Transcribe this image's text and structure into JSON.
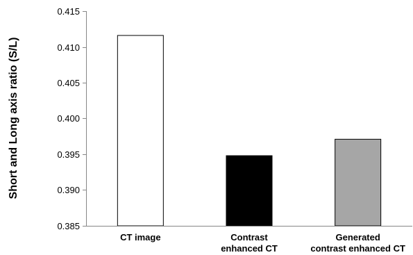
{
  "chart_data": {
    "type": "bar",
    "title": "",
    "xlabel": "",
    "ylabel": "Short and Long axis ratio (S/L)",
    "ylim": [
      0.385,
      0.415
    ],
    "yticks": [
      "0.385",
      "0.390",
      "0.395",
      "0.400",
      "0.405",
      "0.410",
      "0.415"
    ],
    "grid": false,
    "legend": "none",
    "categories": [
      [
        "CT image"
      ],
      [
        "Contrast",
        "enhanced CT"
      ],
      [
        "Generated",
        "contrast enhanced CT"
      ]
    ],
    "values": [
      0.4116,
      0.3948,
      0.3971
    ],
    "colors": [
      "#ffffff",
      "#000000",
      "#a6a6a6"
    ]
  }
}
